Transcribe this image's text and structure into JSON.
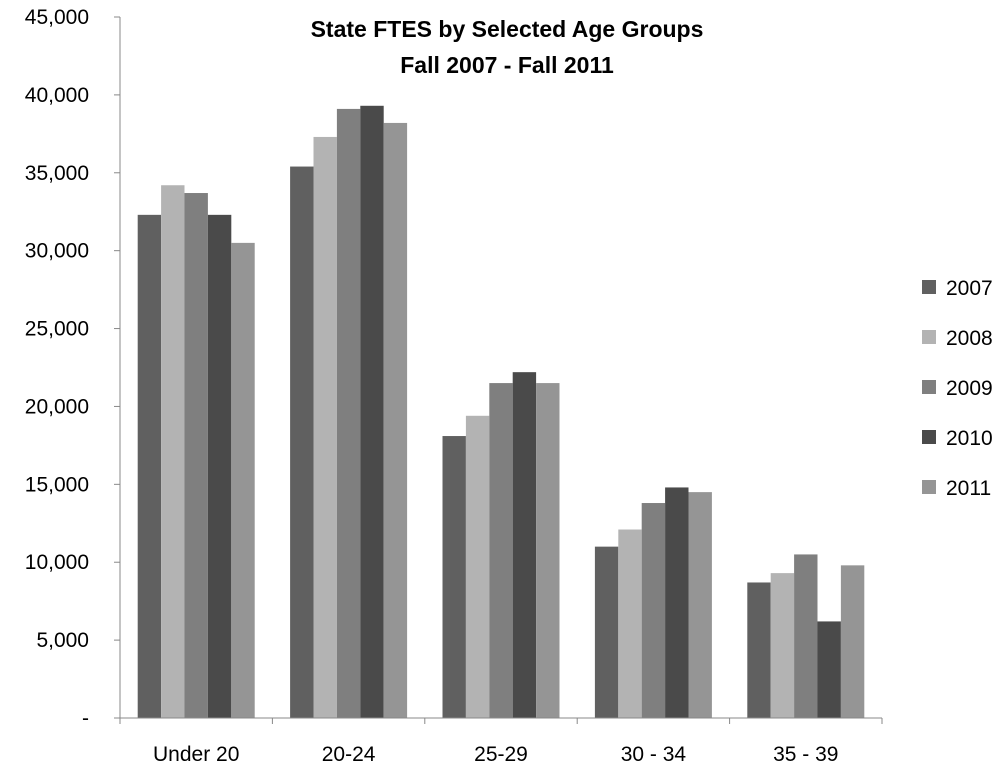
{
  "chart_data": {
    "type": "bar",
    "title": "State FTES by Selected Age Groups",
    "subtitle": "Fall 2007 - Fall 2011",
    "xlabel": "",
    "ylabel": "",
    "categories": [
      "Under 20",
      "20-24",
      "25-29",
      "30 - 34",
      "35 - 39"
    ],
    "series": [
      {
        "name": "2007",
        "color": "#606060",
        "values": [
          32300,
          35400,
          18100,
          11000,
          8700
        ]
      },
      {
        "name": "2008",
        "color": "#b3b3b3",
        "values": [
          34200,
          37300,
          19400,
          12100,
          9300
        ]
      },
      {
        "name": "2009",
        "color": "#7f7f7f",
        "values": [
          33700,
          39100,
          21500,
          13800,
          10500
        ]
      },
      {
        "name": "2010",
        "color": "#4a4a4a",
        "values": [
          32300,
          39300,
          22200,
          14800,
          6200
        ]
      },
      {
        "name": "2011",
        "color": "#959595",
        "values": [
          30500,
          38200,
          21500,
          14500,
          9800
        ]
      }
    ],
    "ylim": [
      0,
      45000
    ],
    "yticks": [
      0,
      5000,
      10000,
      15000,
      20000,
      25000,
      30000,
      35000,
      40000,
      45000
    ],
    "ytick_labels": [
      "-",
      "5,000",
      "10,000",
      "15,000",
      "20,000",
      "25,000",
      "30,000",
      "35,000",
      "40,000",
      "45,000"
    ],
    "grid": false,
    "legend_position": "right"
  }
}
